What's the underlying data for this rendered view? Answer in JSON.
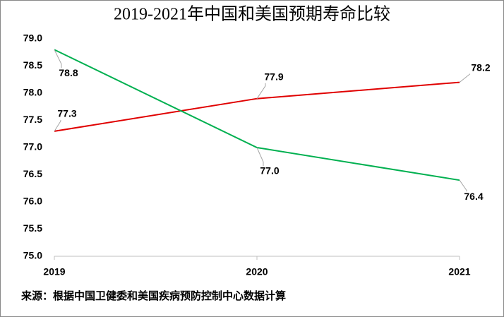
{
  "chart_data": {
    "type": "line",
    "title": "2019-2021年中国和美国预期寿命比较",
    "categories": [
      "2019",
      "2020",
      "2021"
    ],
    "series": [
      {
        "color": "#e00000",
        "values": [
          77.3,
          77.9,
          78.2
        ],
        "value_labels": [
          "77.3",
          "77.9",
          "78.2"
        ]
      },
      {
        "color": "#00b050",
        "values": [
          78.8,
          77.0,
          76.4
        ],
        "value_labels": [
          "78.8",
          "77.0",
          "76.4"
        ]
      }
    ],
    "ylim": [
      75,
      79
    ],
    "yticks": [
      {
        "value": 75,
        "label": "75.0"
      },
      75.5,
      {
        "value": 76,
        "label": "76.0"
      },
      76.5,
      {
        "value": 77,
        "label": "77.0"
      },
      77.5,
      {
        "value": 78,
        "label": "78.0"
      },
      78.5,
      {
        "value": 79,
        "label": "79.0"
      }
    ],
    "note": "来源：根据中国卫健委和美国疾病预防控制中心数据计算"
  }
}
